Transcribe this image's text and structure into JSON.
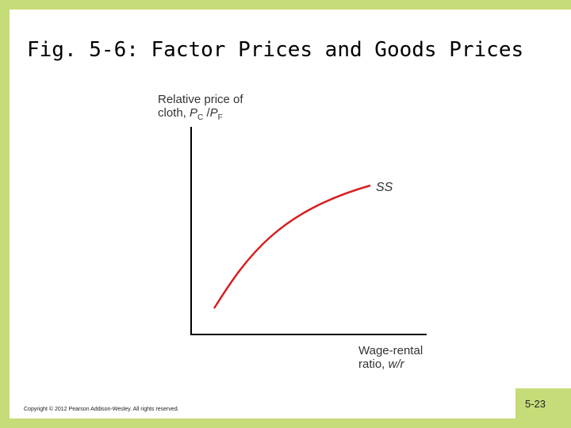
{
  "slide": {
    "title": "Fig. 5-6:  Factor Prices and Goods Prices",
    "copyright": "Copyright © 2012 Pearson Addison-Wesley. All rights reserved.",
    "page_number": "5-23"
  },
  "diagram": {
    "y_axis_label": {
      "line1": "Relative price of",
      "line2_prefix": "cloth, ",
      "pc": "P",
      "pc_sub": "C",
      "slash": " /",
      "pf": "P",
      "pf_sub": "F"
    },
    "x_axis_label": {
      "line1": "Wage-rental",
      "line2_prefix": "ratio, ",
      "var": "w/r"
    },
    "curve_label": "SS",
    "colors": {
      "curve": "#d42020",
      "axes": "#000000",
      "background": "#c6dc78"
    }
  }
}
